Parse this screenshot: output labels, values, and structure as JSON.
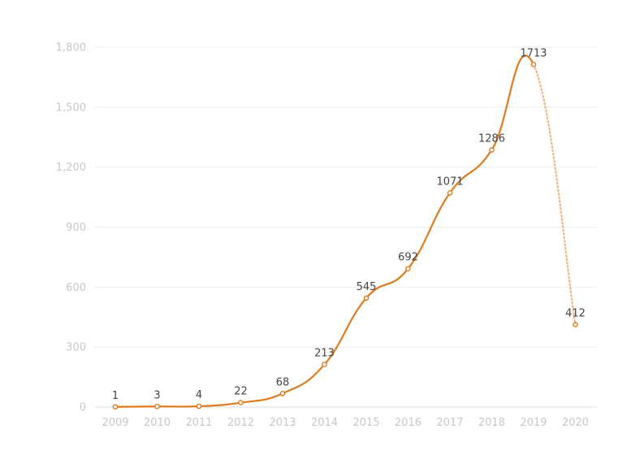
{
  "chart_data": {
    "type": "line",
    "x": [
      "2009",
      "2010",
      "2011",
      "2012",
      "2013",
      "2014",
      "2015",
      "2016",
      "2017",
      "2018",
      "2019",
      "2020"
    ],
    "series": [
      {
        "values": [
          1,
          3,
          4,
          22,
          68,
          213,
          545,
          692,
          1071,
          1286,
          1713,
          412
        ],
        "color": "#e07a1f"
      }
    ],
    "data_labels": [
      "1",
      "3",
      "4",
      "22",
      "68",
      "213",
      "545",
      "692",
      "1071",
      "1286",
      "1713",
      "412"
    ],
    "y_ticks": [
      0,
      300,
      600,
      900,
      1200,
      1500,
      1800
    ],
    "y_tick_labels": [
      "0",
      "300",
      "600",
      "900",
      "1,200",
      "1,500",
      "1,800"
    ],
    "ylim": [
      0,
      1800
    ],
    "grid": true,
    "legend": false,
    "title": "",
    "xlabel": "",
    "ylabel": "",
    "last_segment_style": "dotted"
  }
}
